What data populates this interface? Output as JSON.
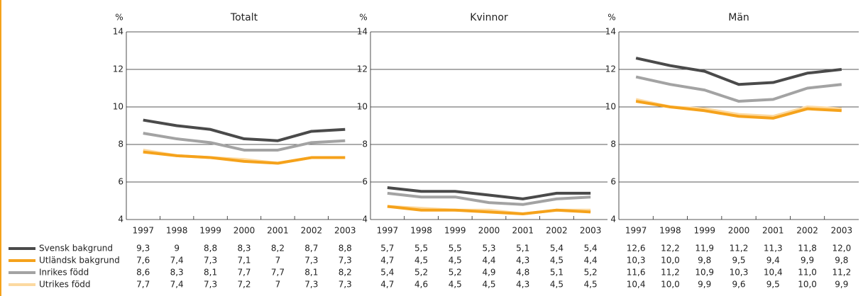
{
  "chart_data": [
    {
      "type": "line",
      "title": "Totalt",
      "ylabel": "%",
      "categories": [
        "1997",
        "1998",
        "1999",
        "2000",
        "2001",
        "2002",
        "2003"
      ],
      "ylim": [
        4,
        14
      ],
      "yticks": [
        4,
        6,
        8,
        10,
        12,
        14
      ],
      "grid": true,
      "series": [
        {
          "name": "Svensk bakgrund",
          "color": "#4a4a4a",
          "values": [
            9.3,
            9,
            8.8,
            8.3,
            8.2,
            8.7,
            8.8
          ],
          "value_labels": [
            "9,3",
            "9",
            "8,8",
            "8,3",
            "8,2",
            "8,7",
            "8,8"
          ]
        },
        {
          "name": "Utländsk bakgrund",
          "color": "#f5a21b",
          "values": [
            7.6,
            7.4,
            7.3,
            7.1,
            7,
            7.3,
            7.3
          ],
          "value_labels": [
            "7,6",
            "7,4",
            "7,3",
            "7,1",
            "7",
            "7,3",
            "7,3"
          ]
        },
        {
          "name": "Inrikes född",
          "color": "#a3a3a3",
          "values": [
            8.6,
            8.3,
            8.1,
            7.7,
            7.7,
            8.1,
            8.2
          ],
          "value_labels": [
            "8,6",
            "8,3",
            "8,1",
            "7,7",
            "7,7",
            "8,1",
            "8,2"
          ]
        },
        {
          "name": "Utrikes född",
          "color": "#fcd9a0",
          "values": [
            7.7,
            7.4,
            7.3,
            7.2,
            7,
            7.3,
            7.3
          ],
          "value_labels": [
            "7,7",
            "7,4",
            "7,3",
            "7,2",
            "7",
            "7,3",
            "7,3"
          ]
        }
      ]
    },
    {
      "type": "line",
      "title": "Kvinnor",
      "ylabel": "%",
      "categories": [
        "1997",
        "1998",
        "1999",
        "2000",
        "2001",
        "2002",
        "2003"
      ],
      "ylim": [
        4,
        14
      ],
      "yticks": [
        4,
        6,
        8,
        10,
        12,
        14
      ],
      "grid": true,
      "series": [
        {
          "color": "#4a4a4a",
          "values": [
            5.7,
            5.5,
            5.5,
            5.3,
            5.1,
            5.4,
            5.4
          ],
          "value_labels": [
            "5,7",
            "5,5",
            "5,5",
            "5,3",
            "5,1",
            "5,4",
            "5,4"
          ]
        },
        {
          "color": "#f5a21b",
          "values": [
            4.7,
            4.5,
            4.5,
            4.4,
            4.3,
            4.5,
            4.4
          ],
          "value_labels": [
            "4,7",
            "4,5",
            "4,5",
            "4,4",
            "4,3",
            "4,5",
            "4,4"
          ]
        },
        {
          "color": "#a3a3a3",
          "values": [
            5.4,
            5.2,
            5.2,
            4.9,
            4.8,
            5.1,
            5.2
          ],
          "value_labels": [
            "5,4",
            "5,2",
            "5,2",
            "4,9",
            "4,8",
            "5,1",
            "5,2"
          ]
        },
        {
          "color": "#fcd9a0",
          "values": [
            4.7,
            4.6,
            4.5,
            4.5,
            4.3,
            4.5,
            4.5
          ],
          "value_labels": [
            "4,7",
            "4,6",
            "4,5",
            "4,5",
            "4,3",
            "4,5",
            "4,5"
          ]
        }
      ]
    },
    {
      "type": "line",
      "title": "Män",
      "ylabel": "%",
      "categories": [
        "1997",
        "1998",
        "1999",
        "2000",
        "2001",
        "2002",
        "2003"
      ],
      "ylim": [
        4,
        14
      ],
      "yticks": [
        4,
        6,
        8,
        10,
        12,
        14
      ],
      "grid": true,
      "series": [
        {
          "color": "#4a4a4a",
          "values": [
            12.6,
            12.2,
            11.9,
            11.2,
            11.3,
            11.8,
            12
          ],
          "value_labels": [
            "12,6",
            "12,2",
            "11,9",
            "11,2",
            "11,3",
            "11,8",
            "12,0"
          ]
        },
        {
          "color": "#f5a21b",
          "values": [
            10.3,
            10,
            9.8,
            9.5,
            9.4,
            9.9,
            9.8
          ],
          "value_labels": [
            "10,3",
            "10,0",
            "9,8",
            "9,5",
            "9,4",
            "9,9",
            "9,8"
          ]
        },
        {
          "color": "#a3a3a3",
          "values": [
            11.6,
            11.2,
            10.9,
            10.3,
            10.4,
            11,
            11.2
          ],
          "value_labels": [
            "11,6",
            "11,2",
            "10,9",
            "10,3",
            "10,4",
            "11,0",
            "11,2"
          ]
        },
        {
          "color": "#fcd9a0",
          "values": [
            10.4,
            10,
            9.9,
            9.6,
            9.5,
            10,
            9.9
          ],
          "value_labels": [
            "10,4",
            "10,0",
            "9,9",
            "9,6",
            "9,5",
            "10,0",
            "9,9"
          ]
        }
      ]
    }
  ]
}
